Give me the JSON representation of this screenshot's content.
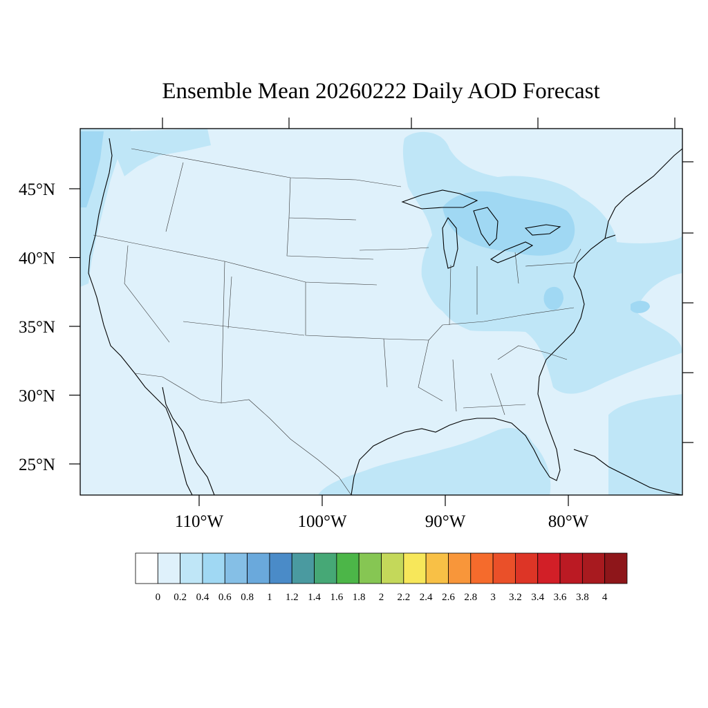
{
  "title": "Ensemble Mean 20260222 Daily AOD Forecast",
  "lat_axis": {
    "ticks": [
      {
        "value": 45,
        "label": "45°N"
      },
      {
        "value": 40,
        "label": "40°N"
      },
      {
        "value": 35,
        "label": "35°N"
      },
      {
        "value": 30,
        "label": "30°N"
      },
      {
        "value": 25,
        "label": "25°N"
      }
    ]
  },
  "lon_axis": {
    "ticks": [
      {
        "value": -110,
        "label": "110°W"
      },
      {
        "value": -100,
        "label": "100°W"
      },
      {
        "value": -90,
        "label": "90°W"
      },
      {
        "value": -80,
        "label": "80°W"
      }
    ]
  },
  "colorbar": {
    "labels": [
      "0",
      "0.2",
      "0.4",
      "0.6",
      "0.8",
      "1",
      "1.2",
      "1.4",
      "1.6",
      "1.8",
      "2",
      "2.2",
      "2.4",
      "2.6",
      "2.8",
      "3",
      "3.2",
      "3.4",
      "3.6",
      "3.8",
      "4"
    ],
    "colors": [
      "#ffffff",
      "#dff1fb",
      "#bfe6f7",
      "#a0d8f3",
      "#85bfe6",
      "#6aa9dc",
      "#4a8bc8",
      "#4a9aa0",
      "#46a876",
      "#4cb648",
      "#86c653",
      "#c4d85a",
      "#f7e75a",
      "#f8c046",
      "#f8963a",
      "#f56b2c",
      "#ea5029",
      "#dd3526",
      "#d21f27",
      "#bb1a23",
      "#a81a1f",
      "#8e161a"
    ]
  },
  "field": {
    "background_color": "#dff1fb",
    "contour_colors": {
      "level_0_2": "#dff1fb",
      "level_0_4": "#bfe6f7",
      "level_0_6": "#a0d8f3"
    }
  }
}
